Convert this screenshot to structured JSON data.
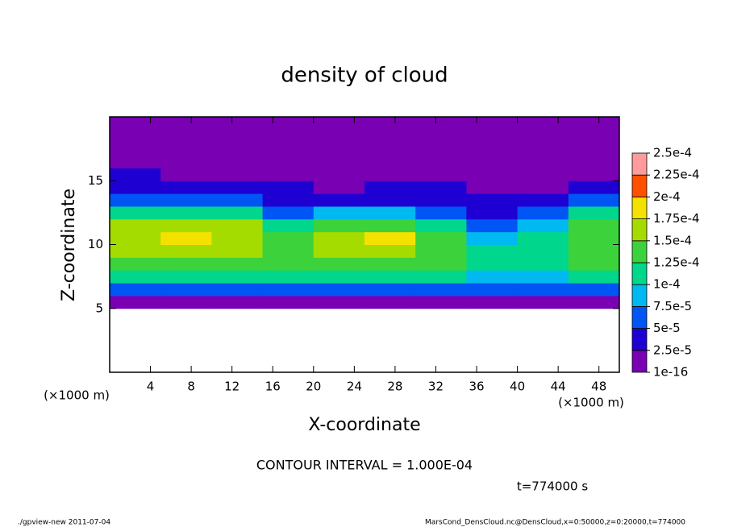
{
  "chart_data": {
    "type": "heatmap",
    "title": "density of cloud",
    "x_label": "X-coordinate",
    "y_label": "Z-coordinate",
    "x_unit": "(×1000 m)",
    "y_unit": "(×1000 m)",
    "xlim": [
      0,
      50
    ],
    "xticks": [
      4,
      8,
      12,
      16,
      20,
      24,
      28,
      32,
      36,
      40,
      44,
      48
    ],
    "ylim": [
      0,
      20
    ],
    "yticks": [
      5,
      10,
      15
    ],
    "x": [
      2.5,
      7.5,
      12.5,
      17.5,
      22.5,
      27.5,
      32.5,
      37.5,
      42.5,
      47.5
    ],
    "y": [
      5.5,
      6.5,
      7.5,
      8.5,
      9.5,
      10.5,
      11.5,
      12.5,
      13.5,
      14.5,
      15.5,
      16.5,
      17.5,
      18.5,
      19.5
    ],
    "values": [
      [
        2e-05,
        2e-05,
        2e-05,
        2e-05,
        2e-05,
        2e-05,
        2e-05,
        2e-05,
        2e-05,
        2e-05
      ],
      [
        6e-05,
        6e-05,
        6e-05,
        6e-05,
        6e-05,
        6e-05,
        6e-05,
        6e-05,
        6e-05,
        6e-05
      ],
      [
        0.00011,
        0.00011,
        0.00011,
        0.000105,
        0.00011,
        0.00011,
        0.000105,
        9e-05,
        9e-05,
        0.0001
      ],
      [
        0.00014,
        0.000145,
        0.00014,
        0.00013,
        0.00014,
        0.00014,
        0.00013,
        0.00011,
        0.00011,
        0.000125
      ],
      [
        0.00016,
        0.00017,
        0.00016,
        0.00014,
        0.00016,
        0.000165,
        0.00014,
        0.000105,
        0.00011,
        0.00014
      ],
      [
        0.000165,
        0.00018,
        0.00017,
        0.000135,
        0.00017,
        0.00018,
        0.00013,
        8e-05,
        0.0001,
        0.00014
      ],
      [
        0.00015,
        0.00016,
        0.00015,
        0.000105,
        0.00014,
        0.00014,
        0.0001,
        6e-05,
        9e-05,
        0.00013
      ],
      [
        0.00012,
        0.00012,
        0.000115,
        7e-05,
        8e-05,
        8e-05,
        6e-05,
        4e-05,
        6e-05,
        0.000105
      ],
      [
        7e-05,
        6e-05,
        5e-05,
        4e-05,
        4e-05,
        4e-05,
        3e-05,
        3e-05,
        4e-05,
        6e-05
      ],
      [
        4e-05,
        3e-05,
        3e-05,
        3e-05,
        2e-05,
        3e-05,
        2.5e-05,
        2e-05,
        2e-05,
        3e-05
      ],
      [
        3e-05,
        2e-05,
        2e-05,
        2e-05,
        2e-05,
        2e-05,
        2e-05,
        1.5e-05,
        1.5e-05,
        2e-05
      ],
      [
        1e-05,
        1e-05,
        1e-05,
        1e-05,
        1e-05,
        1e-05,
        1e-05,
        1e-05,
        1e-05,
        1e-05
      ],
      [
        8e-06,
        8e-06,
        8e-06,
        8e-06,
        8e-06,
        8e-06,
        8e-06,
        8e-06,
        8e-06,
        8e-06
      ],
      [
        5e-06,
        5e-06,
        5e-06,
        5e-06,
        5e-06,
        5e-06,
        5e-06,
        5e-06,
        5e-06,
        5e-06
      ],
      [
        2e-06,
        2e-06,
        2e-06,
        2e-06,
        2e-06,
        2e-06,
        2e-06,
        2e-06,
        2e-06,
        2e-06
      ]
    ],
    "levels": [
      1e-16,
      {
        "value": 2.5e-05,
        "label": "2.5e-5"
      },
      {
        "value": 5e-05,
        "label": "5e-5"
      },
      {
        "value": 7.5e-05,
        "label": "7.5e-5"
      },
      {
        "value": 0.0001,
        "label": "1e-4"
      },
      {
        "value": 0.000125,
        "label": "1.25e-4"
      },
      {
        "value": 0.00015,
        "label": "1.5e-4"
      },
      {
        "value": 0.000175,
        "label": "1.75e-4"
      },
      {
        "value": 0.0002,
        "label": "2e-4"
      },
      {
        "value": 0.000225,
        "label": "2.25e-4"
      },
      {
        "value": 0.00025,
        "label": "2.5e-4"
      }
    ],
    "colors": [
      "#7a00b4",
      "#1e00d2",
      "#0055f5",
      "#00b9f0",
      "#00d68c",
      "#3cd23c",
      "#a5dc00",
      "#f5e100",
      "#ff5000",
      "#ff9b9b"
    ],
    "contour_interval": "CONTOUR INTERVAL = 1.000E-04",
    "time_label": "t=774000 s",
    "footer_left": "./gpview-new  2011-07-04",
    "footer_right": "MarsCond_DensCloud.nc@DensCloud,x=0:50000,z=0:20000,t=774000"
  }
}
